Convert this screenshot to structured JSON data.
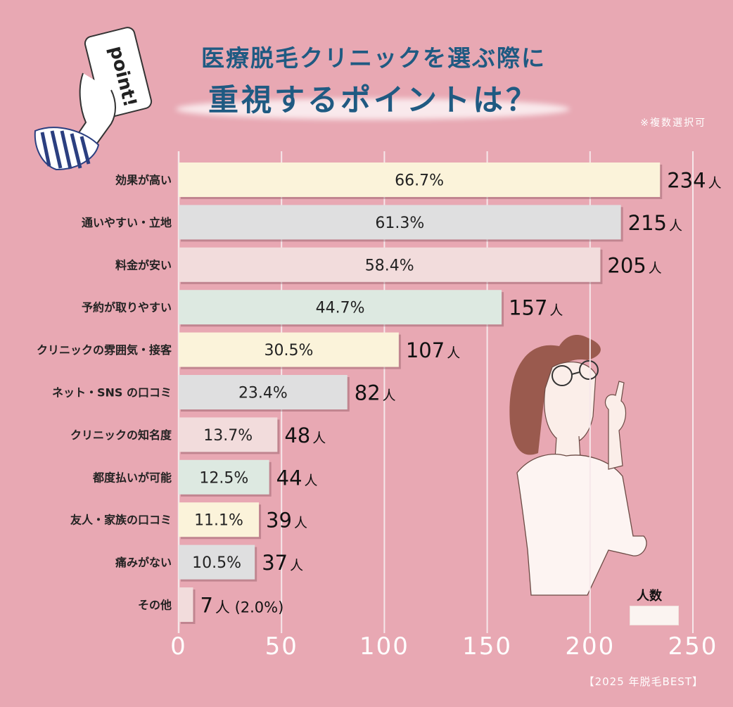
{
  "header": {
    "title_line1": "医療脱毛クリニックを選ぶ際に",
    "title_line2": "重視するポイントは？",
    "note": "※複数選択可",
    "point_label": "point!"
  },
  "footer": {
    "credit": "【2025 年脱毛BEST】"
  },
  "legend": {
    "label": "人数"
  },
  "colors": {
    "background": "#e8a8b3",
    "title": "#1f5a82",
    "grid": "#f6e7ea",
    "bar_border": "#9a7078"
  },
  "chart_data": {
    "type": "bar",
    "orientation": "horizontal",
    "title": "医療脱毛クリニックを選ぶ際に重視するポイントは？",
    "xlabel": "人数",
    "xlim": [
      0,
      250
    ],
    "xticks": [
      "0",
      "50",
      "100",
      "150",
      "200",
      "250"
    ],
    "xtick_values": [
      0,
      50,
      100,
      150,
      200,
      250
    ],
    "grid": true,
    "categories": [
      "効果が高い",
      "通いやすい・立地",
      "料金が安い",
      "予約が取りやすい",
      "クリニックの雰囲気・接客",
      "ネット・SNS の口コミ",
      "クリニックの知名度",
      "都度払いが可能",
      "友人・家族の口コミ",
      "痛みがない",
      "その他"
    ],
    "values": [
      234,
      215,
      205,
      157,
      107,
      82,
      48,
      44,
      39,
      37,
      7
    ],
    "percent_labels": [
      "66.7%",
      "61.3%",
      "58.4%",
      "44.7%",
      "30.5%",
      "23.4%",
      "13.7%",
      "12.5%",
      "11.1%",
      "10.5%",
      ""
    ],
    "value_numbers": [
      "234",
      "215",
      "205",
      "157",
      "107",
      "82",
      "48",
      "44",
      "39",
      "37",
      "7"
    ],
    "value_suffixes": [
      "人",
      "人",
      "人",
      "人",
      "人",
      "人",
      "人",
      "人",
      "人",
      "人",
      "人 (2.0%)"
    ],
    "bar_colors": [
      "#fbf3da",
      "#dfdfe0",
      "#f2dcdc",
      "#dde9e1",
      "#fbf3da",
      "#dfdfe0",
      "#f2dcdc",
      "#dde9e1",
      "#fbf3da",
      "#dfdfe0",
      "#f2dcdc"
    ]
  }
}
